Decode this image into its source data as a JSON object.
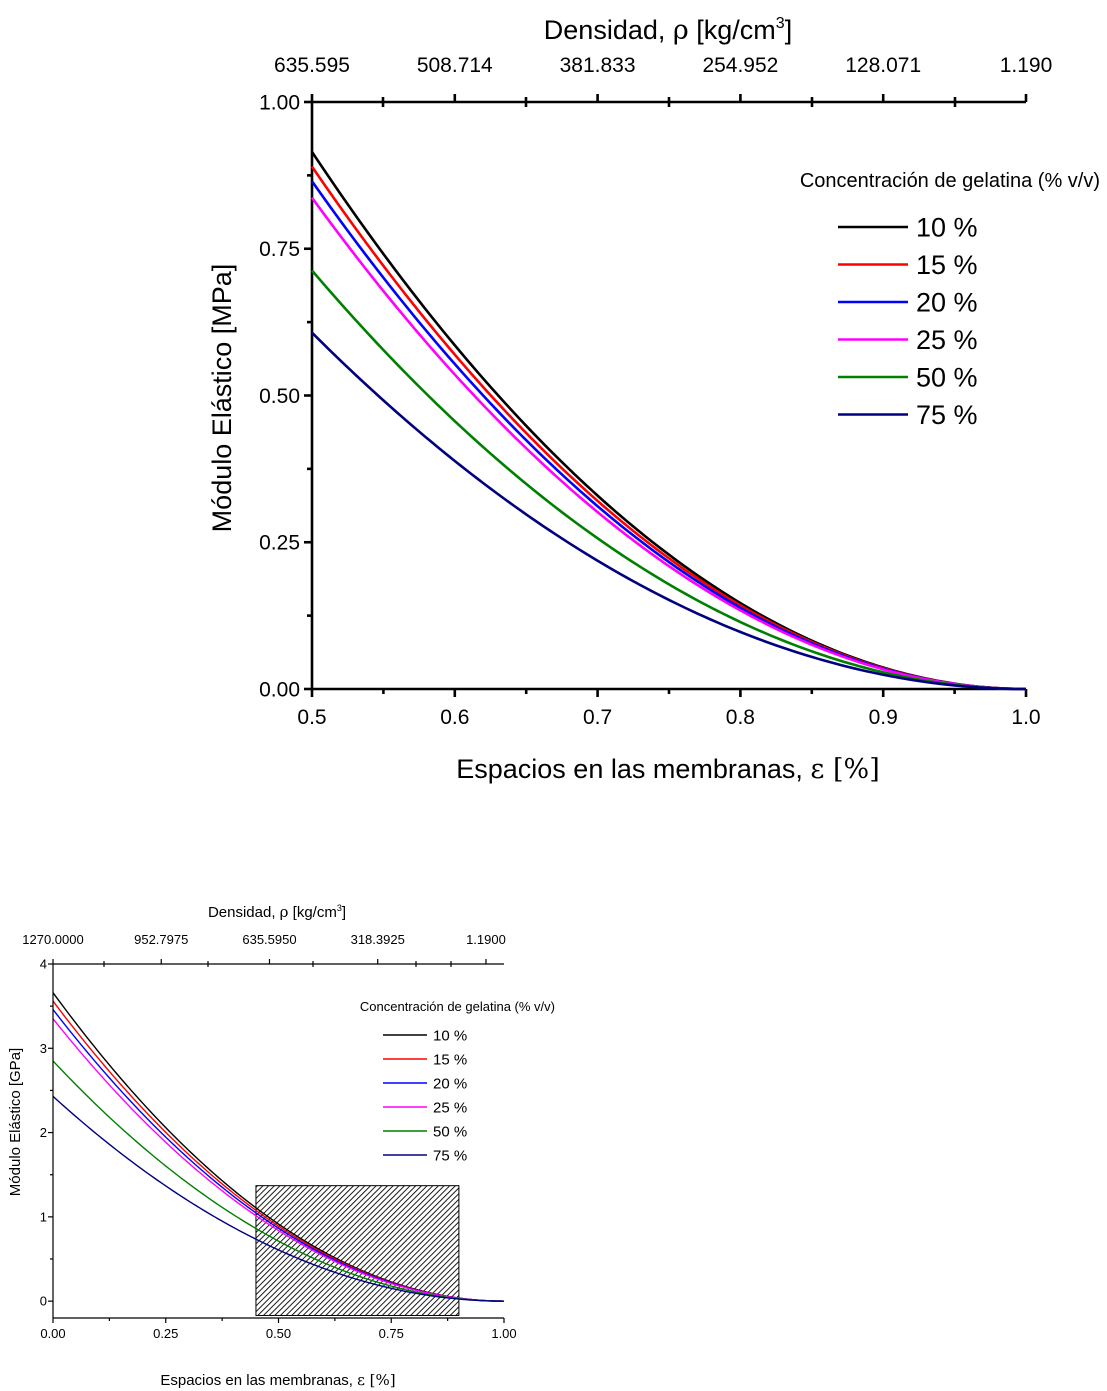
{
  "chart_data": [
    {
      "type": "line",
      "top_axis": {
        "label_prefix": "Densidad, ",
        "label_symbol": "ρ",
        "label_suffix": " [kg/cm",
        "label_sup": "3",
        "label_close": "]",
        "tick_labels": [
          "635.595",
          "508.714",
          "381.833",
          "254.952",
          "128.071",
          "1.190"
        ]
      },
      "xlabel_prefix": "Espacios en las membranas, ",
      "xlabel_symbol": "ε",
      "xlabel_suffix": " [%]",
      "ylabel": "Módulo Elástico [MPa]",
      "xlim": [
        0.5,
        1.0
      ],
      "ylim": [
        0.0,
        1.0
      ],
      "x_ticks": [
        "0.5",
        "0.6",
        "0.7",
        "0.8",
        "0.9",
        "1.0"
      ],
      "y_ticks": [
        "0.00",
        "0.25",
        "0.50",
        "0.75",
        "1.00"
      ],
      "legend_title": "Concentración de gelatina  (% v/v)",
      "legend_position": "right",
      "grid": false,
      "series": [
        {
          "name": "10 %",
          "color": "#000000",
          "y_at_0_5": 0.915
        },
        {
          "name": "15 %",
          "color": "#ff0000",
          "y_at_0_5": 0.89
        },
        {
          "name": "20 %",
          "color": "#0000ff",
          "y_at_0_5": 0.865
        },
        {
          "name": "25 %",
          "color": "#ff00ff",
          "y_at_0_5": 0.837
        },
        {
          "name": "50 %",
          "color": "#008000",
          "y_at_0_5": 0.713
        },
        {
          "name": "75 %",
          "color": "#000080",
          "y_at_0_5": 0.607
        }
      ],
      "curve_model": "y = y_at_0_5 * ((1 - x) / 0.5)^2"
    },
    {
      "type": "line",
      "top_axis": {
        "label_prefix": "Densidad, ",
        "label_symbol": "ρ",
        "label_suffix": " [kg/cm",
        "label_sup": "3",
        "label_close": "]",
        "tick_labels": [
          "1270.0000",
          "952.7975",
          "635.5950",
          "318.3925",
          "1.1900"
        ]
      },
      "xlabel_prefix": "Espacios en las membranas, ",
      "xlabel_symbol": "ε",
      "xlabel_suffix": " [%]",
      "ylabel": "Módulo Elástico [GPa]",
      "xlim": [
        0.0,
        1.0
      ],
      "ylim": [
        -0.2,
        4.0
      ],
      "x_ticks": [
        "0.00",
        "0.25",
        "0.50",
        "0.75",
        "1.00"
      ],
      "y_ticks": [
        "0",
        "1",
        "2",
        "3",
        "4"
      ],
      "legend_title": "Concentración de gelatina  (% v/v)",
      "legend_position": "right",
      "grid": false,
      "highlight_region": {
        "x_range": [
          0.45,
          0.9
        ],
        "y_range": [
          -0.17,
          1.37
        ],
        "fill": "hatched"
      },
      "series": [
        {
          "name": "10 %",
          "color": "#000000",
          "y_at_0": 3.66
        },
        {
          "name": "15 %",
          "color": "#ff0000",
          "y_at_0": 3.56
        },
        {
          "name": "20 %",
          "color": "#0000ff",
          "y_at_0": 3.46
        },
        {
          "name": "25 %",
          "color": "#ff00ff",
          "y_at_0": 3.35
        },
        {
          "name": "50 %",
          "color": "#008000",
          "y_at_0": 2.85
        },
        {
          "name": "75 %",
          "color": "#000080",
          "y_at_0": 2.43
        }
      ],
      "curve_model": "y = y_at_0 * (1 - x)^2"
    }
  ]
}
